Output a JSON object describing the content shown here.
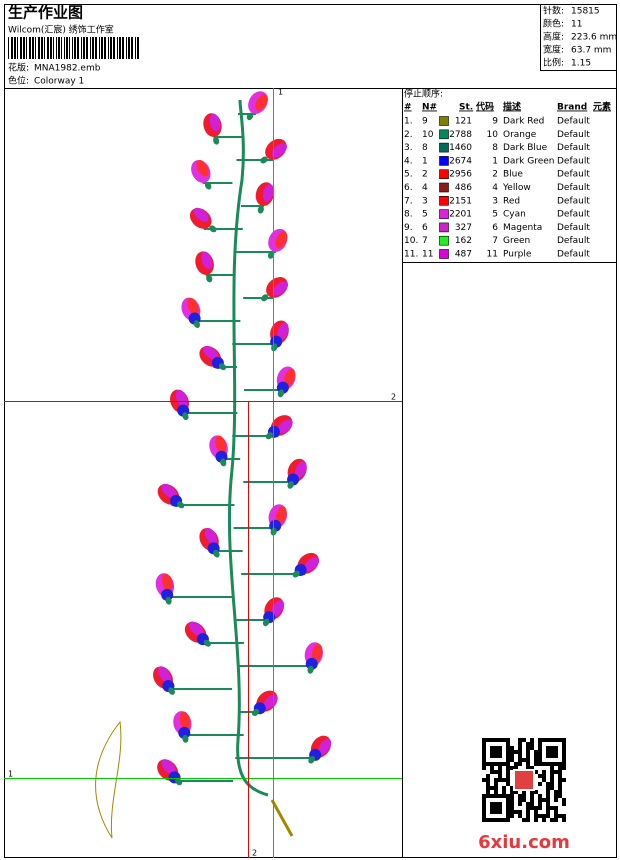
{
  "header": {
    "title": "生产作业图",
    "studio": "Wilcom(汇宸) 绣饰工作室",
    "fields": [
      {
        "label": "花版:",
        "value": "MNA1982.emb"
      },
      {
        "label": "色位:",
        "value": "Colorway 1"
      }
    ]
  },
  "stats": [
    {
      "label": "针数:",
      "value": "15815"
    },
    {
      "label": "颜色:",
      "value": "11"
    },
    {
      "label": "高度:",
      "value": "223.6 mm"
    },
    {
      "label": "宽度:",
      "value": "63.7 mm"
    },
    {
      "label": "比例:",
      "value": "1.15"
    }
  ],
  "stop_sequence": {
    "title": "停止顺序:",
    "columns": [
      "#",
      "N#",
      "St.",
      "代码",
      "描述",
      "Brand",
      "元素"
    ],
    "rows": [
      {
        "order": "1.",
        "needle": 9,
        "color": "#808000",
        "stitches": 121,
        "code": 9,
        "description": "Dark Red",
        "brand": "Default"
      },
      {
        "order": "2.",
        "needle": 10,
        "color": "#008a5a",
        "stitches": 2788,
        "code": 10,
        "description": "Orange",
        "brand": "Default"
      },
      {
        "order": "3.",
        "needle": 8,
        "color": "#006e5a",
        "stitches": 1460,
        "code": 8,
        "description": "Dark Blue",
        "brand": "Default"
      },
      {
        "order": "4.",
        "needle": 1,
        "color": "#0000ff",
        "stitches": 2674,
        "code": 1,
        "description": "Dark Green",
        "brand": "Default"
      },
      {
        "order": "5.",
        "needle": 2,
        "color": "#ff0000",
        "stitches": 2956,
        "code": 2,
        "description": "Blue",
        "brand": "Default"
      },
      {
        "order": "6.",
        "needle": 4,
        "color": "#8b1a1a",
        "stitches": 486,
        "code": 4,
        "description": "Yellow",
        "brand": "Default"
      },
      {
        "order": "7.",
        "needle": 3,
        "color": "#ff0000",
        "stitches": 2151,
        "code": 3,
        "description": "Red",
        "brand": "Default"
      },
      {
        "order": "8.",
        "needle": 5,
        "color": "#e020e0",
        "stitches": 2201,
        "code": 5,
        "description": "Cyan",
        "brand": "Default"
      },
      {
        "order": "9.",
        "needle": 6,
        "color": "#cc22cc",
        "stitches": 327,
        "code": 6,
        "description": "Magenta",
        "brand": "Default"
      },
      {
        "order": "10.",
        "needle": 7,
        "color": "#22ee22",
        "stitches": 162,
        "code": 7,
        "description": "Green",
        "brand": "Default"
      },
      {
        "order": "11.",
        "needle": 11,
        "color": "#dd00dd",
        "stitches": 487,
        "code": 11,
        "description": "Purple",
        "brand": "Default"
      }
    ]
  },
  "guides": {
    "green": "1",
    "red": "2"
  },
  "watermark": "6xiu.com"
}
